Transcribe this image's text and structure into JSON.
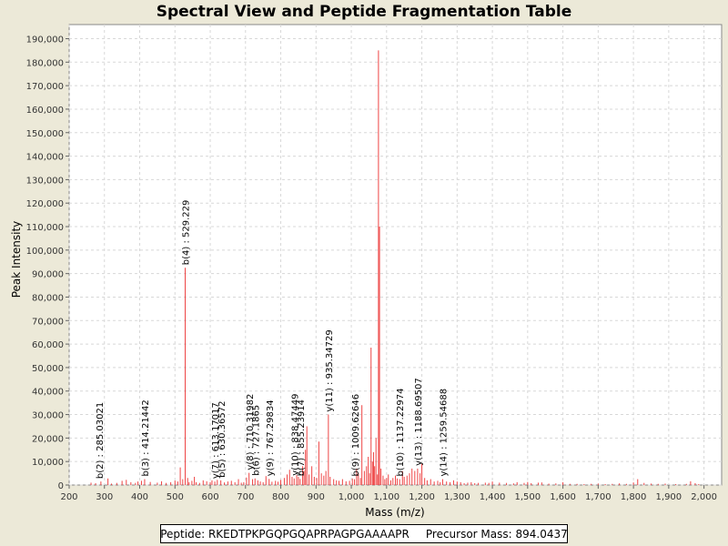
{
  "chart_data": {
    "type": "bar",
    "title": "Spectral View and Peptide Fragmentation Table",
    "xlabel": "Mass (m/z)",
    "ylabel": "Peak Intensity",
    "xlim": [
      200,
      2050
    ],
    "ylim": [
      0,
      196000
    ],
    "x_ticks": [
      200,
      300,
      400,
      500,
      600,
      700,
      800,
      900,
      1000,
      1100,
      1200,
      1300,
      1400,
      1500,
      1600,
      1700,
      1800,
      1900,
      2000
    ],
    "x_tick_labels": [
      "200",
      "300",
      "400",
      "500",
      "600",
      "700",
      "800",
      "900",
      "1,000",
      "1,100",
      "1,200",
      "1,300",
      "1,400",
      "1,500",
      "1,600",
      "1,700",
      "1,800",
      "1,900",
      "2,000"
    ],
    "y_ticks": [
      0,
      10000,
      20000,
      30000,
      40000,
      50000,
      60000,
      70000,
      80000,
      90000,
      100000,
      110000,
      120000,
      130000,
      140000,
      150000,
      160000,
      170000,
      180000,
      190000
    ],
    "y_tick_labels": [
      "0",
      "10,000",
      "20,000",
      "30,000",
      "40,000",
      "50,000",
      "60,000",
      "70,000",
      "80,000",
      "90,000",
      "100,000",
      "110,000",
      "120,000",
      "130,000",
      "140,000",
      "150,000",
      "160,000",
      "170,000",
      "180,000",
      "190,000"
    ],
    "grid": true,
    "series_color": "#ee4444",
    "peaks": [
      [
        262,
        1000
      ],
      [
        275,
        800
      ],
      [
        290,
        1500
      ],
      [
        310,
        2800
      ],
      [
        320,
        600
      ],
      [
        335,
        900
      ],
      [
        350,
        1800
      ],
      [
        362,
        2200
      ],
      [
        375,
        1200
      ],
      [
        388,
        900
      ],
      [
        395,
        1500
      ],
      [
        405,
        1800
      ],
      [
        414,
        2500
      ],
      [
        430,
        1300
      ],
      [
        450,
        1000
      ],
      [
        462,
        1600
      ],
      [
        475,
        900
      ],
      [
        488,
        1200
      ],
      [
        500,
        1900
      ],
      [
        508,
        1500
      ],
      [
        515,
        7500
      ],
      [
        522,
        2500
      ],
      [
        529,
        92500
      ],
      [
        536,
        3000
      ],
      [
        540,
        1200
      ],
      [
        548,
        1800
      ],
      [
        555,
        3500
      ],
      [
        560,
        1200
      ],
      [
        570,
        900
      ],
      [
        580,
        2000
      ],
      [
        590,
        1600
      ],
      [
        600,
        1200
      ],
      [
        605,
        2000
      ],
      [
        613,
        1500
      ],
      [
        620,
        2200
      ],
      [
        630,
        2000
      ],
      [
        640,
        1100
      ],
      [
        650,
        1500
      ],
      [
        660,
        1800
      ],
      [
        670,
        1200
      ],
      [
        680,
        2500
      ],
      [
        688,
        1000
      ],
      [
        695,
        1200
      ],
      [
        703,
        3200
      ],
      [
        710,
        5200
      ],
      [
        720,
        2500
      ],
      [
        727,
        2800
      ],
      [
        735,
        2000
      ],
      [
        742,
        1500
      ],
      [
        750,
        1200
      ],
      [
        758,
        3800
      ],
      [
        767,
        2600
      ],
      [
        775,
        1400
      ],
      [
        785,
        1800
      ],
      [
        792,
        1400
      ],
      [
        800,
        2200
      ],
      [
        810,
        3000
      ],
      [
        818,
        4500
      ],
      [
        825,
        6500
      ],
      [
        832,
        3500
      ],
      [
        838,
        2800
      ],
      [
        845,
        4200
      ],
      [
        850,
        3500
      ],
      [
        855,
        2600
      ],
      [
        862,
        8000
      ],
      [
        866,
        6000
      ],
      [
        870,
        15000
      ],
      [
        874,
        25000
      ],
      [
        880,
        4500
      ],
      [
        888,
        8000
      ],
      [
        895,
        3500
      ],
      [
        902,
        3000
      ],
      [
        908,
        18500
      ],
      [
        915,
        5000
      ],
      [
        922,
        4000
      ],
      [
        928,
        6000
      ],
      [
        935,
        30000
      ],
      [
        940,
        3500
      ],
      [
        950,
        2500
      ],
      [
        958,
        2000
      ],
      [
        965,
        1800
      ],
      [
        975,
        2500
      ],
      [
        985,
        1600
      ],
      [
        995,
        1800
      ],
      [
        1003,
        2800
      ],
      [
        1009,
        2500
      ],
      [
        1015,
        7000
      ],
      [
        1020,
        5000
      ],
      [
        1026,
        3000
      ],
      [
        1030,
        34000
      ],
      [
        1037,
        6000
      ],
      [
        1043,
        8000
      ],
      [
        1048,
        12000
      ],
      [
        1052,
        5000
      ],
      [
        1056,
        58500
      ],
      [
        1060,
        10000
      ],
      [
        1063,
        14000
      ],
      [
        1066,
        8000
      ],
      [
        1070,
        20000
      ],
      [
        1074,
        4500
      ],
      [
        1077,
        185000
      ],
      [
        1080,
        110000
      ],
      [
        1084,
        7000
      ],
      [
        1090,
        4000
      ],
      [
        1095,
        2500
      ],
      [
        1100,
        3000
      ],
      [
        1105,
        4500
      ],
      [
        1112,
        2000
      ],
      [
        1118,
        3000
      ],
      [
        1125,
        4000
      ],
      [
        1130,
        2800
      ],
      [
        1137,
        2500
      ],
      [
        1145,
        6000
      ],
      [
        1150,
        3500
      ],
      [
        1158,
        4000
      ],
      [
        1165,
        5000
      ],
      [
        1172,
        7000
      ],
      [
        1180,
        6000
      ],
      [
        1188,
        7000
      ],
      [
        1195,
        5000
      ],
      [
        1200,
        9000
      ],
      [
        1208,
        3000
      ],
      [
        1215,
        2000
      ],
      [
        1225,
        2500
      ],
      [
        1235,
        1500
      ],
      [
        1245,
        1800
      ],
      [
        1252,
        1200
      ],
      [
        1259,
        2500
      ],
      [
        1270,
        1500
      ],
      [
        1280,
        1200
      ],
      [
        1290,
        2000
      ],
      [
        1300,
        1500
      ],
      [
        1310,
        1200
      ],
      [
        1320,
        800
      ],
      [
        1330,
        1000
      ],
      [
        1340,
        1200
      ],
      [
        1350,
        800
      ],
      [
        1360,
        900
      ],
      [
        1380,
        1000
      ],
      [
        1390,
        900
      ],
      [
        1400,
        1500
      ],
      [
        1420,
        1000
      ],
      [
        1440,
        900
      ],
      [
        1460,
        700
      ],
      [
        1470,
        1200
      ],
      [
        1490,
        900
      ],
      [
        1500,
        1300
      ],
      [
        1510,
        800
      ],
      [
        1530,
        1000
      ],
      [
        1540,
        1100
      ],
      [
        1560,
        600
      ],
      [
        1580,
        700
      ],
      [
        1600,
        1200
      ],
      [
        1620,
        500
      ],
      [
        1640,
        500
      ],
      [
        1660,
        400
      ],
      [
        1680,
        500
      ],
      [
        1700,
        600
      ],
      [
        1720,
        400
      ],
      [
        1740,
        500
      ],
      [
        1760,
        700
      ],
      [
        1780,
        500
      ],
      [
        1800,
        1100
      ],
      [
        1812,
        2500
      ],
      [
        1830,
        900
      ],
      [
        1850,
        600
      ],
      [
        1870,
        500
      ],
      [
        1890,
        600
      ],
      [
        1920,
        400
      ],
      [
        1950,
        500
      ],
      [
        1962,
        1600
      ],
      [
        1975,
        800
      ],
      [
        1985,
        400
      ]
    ],
    "annotations": [
      {
        "label": "b(2) : 285.03021",
        "x": 285.03,
        "y": 1500
      },
      {
        "label": "b(3) : 414.21442",
        "x": 414.21,
        "y": 2500
      },
      {
        "label": "b(4) : 529.229",
        "x": 529.23,
        "y": 92500
      },
      {
        "label": "y(7) : 613.17017",
        "x": 613.17,
        "y": 1500
      },
      {
        "label": "b(5) : 630.36572",
        "x": 630.37,
        "y": 2000
      },
      {
        "label": "y(8) : 710.31982",
        "x": 710.32,
        "y": 5200
      },
      {
        "label": "b(6) : 727.1865",
        "x": 727.19,
        "y": 2800
      },
      {
        "label": "y(9) : 767.29834",
        "x": 767.3,
        "y": 2600
      },
      {
        "label": "y(10) : 838.47449",
        "x": 838.47,
        "y": 2800
      },
      {
        "label": "b(7) : 855.23914",
        "x": 855.24,
        "y": 2600
      },
      {
        "label": "y(11) : 935.34729",
        "x": 935.35,
        "y": 30000
      },
      {
        "label": "b(9) : 1009.62646",
        "x": 1009.63,
        "y": 2500
      },
      {
        "label": "b(10) : 1137.22974",
        "x": 1137.23,
        "y": 2500
      },
      {
        "label": "y(13) : 1188.69507",
        "x": 1188.7,
        "y": 7000
      },
      {
        "label": "y(14) : 1259.54688",
        "x": 1259.55,
        "y": 2500
      }
    ]
  },
  "info": {
    "peptide": "Peptide: RKEDTPKPGQPGQAPRPAGPGAAAAPR",
    "precursor": "Precursor Mass: 894.0437"
  }
}
